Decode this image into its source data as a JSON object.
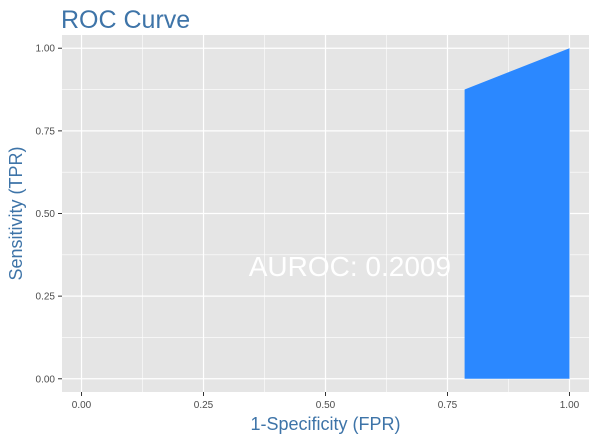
{
  "chart_data": {
    "type": "area",
    "title": "ROC Curve",
    "xlabel": "1-Specificity (FPR)",
    "ylabel": "Sensitivity (TPR)",
    "xlim": [
      -0.04,
      1.04
    ],
    "ylim": [
      -0.04,
      1.04
    ],
    "x_ticks": [
      0,
      0.25,
      0.5,
      0.75,
      1
    ],
    "x_tick_labels": [
      "0.00",
      "0.25",
      "0.50",
      "0.75",
      "1.00"
    ],
    "y_ticks": [
      0,
      0.25,
      0.5,
      0.75,
      1
    ],
    "y_tick_labels": [
      "0.00",
      "0.25",
      "0.50",
      "0.75",
      "1.00"
    ],
    "x_minor": [
      0.125,
      0.375,
      0.625,
      0.875
    ],
    "y_minor": [
      0.125,
      0.375,
      0.625,
      0.875
    ],
    "grid": true,
    "series": [
      {
        "x": [
          0.785,
          0.785,
          1.0,
          1.0
        ],
        "y": [
          0.0,
          0.875,
          1.0,
          0.0
        ],
        "color": "#2b88ff"
      }
    ],
    "annotation": {
      "text": "AUROC: 0.2009",
      "x": 0.55,
      "y": 0.34
    },
    "colors": {
      "panel_bg": "#e5e5e5",
      "grid": "#ffffff",
      "title": "#3e74a8",
      "annotation": "#ffffff",
      "tick_text": "#4d4d4d"
    }
  }
}
